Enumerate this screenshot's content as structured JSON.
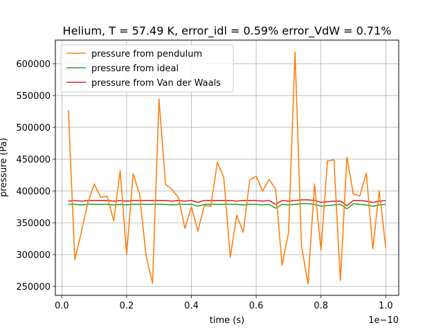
{
  "chart_data": {
    "type": "line",
    "title": "Helium, T = 57.49 K, error_idl = 0.59% error_VdW = 0.71%",
    "xlabel": "time (s)",
    "ylabel": "pressure (Pa)",
    "x_offset_label": "1e−10",
    "xlim": [
      -0.02,
      1.04
    ],
    "ylim": [
      236000,
      637000
    ],
    "xticks": [
      0.0,
      0.2,
      0.4,
      0.6,
      0.8,
      1.0
    ],
    "xtick_labels": [
      "0.0",
      "0.2",
      "0.4",
      "0.6",
      "0.8",
      "1.0"
    ],
    "yticks": [
      250000,
      300000,
      350000,
      400000,
      450000,
      500000,
      550000,
      600000
    ],
    "ytick_labels": [
      "250000",
      "300000",
      "350000",
      "400000",
      "450000",
      "500000",
      "550000",
      "600000"
    ],
    "grid": true,
    "legend_position": "top-left",
    "x": [
      0.02,
      0.04,
      0.06,
      0.08,
      0.1,
      0.12,
      0.14,
      0.16,
      0.18,
      0.2,
      0.22,
      0.24,
      0.26,
      0.28,
      0.3,
      0.32,
      0.34,
      0.36,
      0.38,
      0.4,
      0.42,
      0.44,
      0.46,
      0.48,
      0.5,
      0.52,
      0.54,
      0.56,
      0.58,
      0.6,
      0.62,
      0.64,
      0.66,
      0.68,
      0.7,
      0.72,
      0.74,
      0.76,
      0.78,
      0.8,
      0.82,
      0.84,
      0.86,
      0.88,
      0.9,
      0.92,
      0.94,
      0.96,
      0.98,
      1.0
    ],
    "series": [
      {
        "name": "pressure from pendulum",
        "color": "#ff7f0e",
        "values": [
          527000,
          292000,
          335000,
          381000,
          411000,
          390000,
          392000,
          353000,
          432000,
          300000,
          427000,
          395000,
          298000,
          255000,
          544000,
          411000,
          402000,
          390000,
          341000,
          375000,
          337000,
          377000,
          376000,
          445000,
          421000,
          296000,
          362000,
          335000,
          417000,
          423000,
          400000,
          418000,
          403000,
          283000,
          335000,
          618000,
          313000,
          254000,
          411000,
          307000,
          447000,
          449000,
          259000,
          453000,
          395000,
          392000,
          428000,
          309000,
          400000,
          311000
        ]
      },
      {
        "name": "pressure from ideal",
        "color": "#2ca02c",
        "values": [
          379000,
          379000,
          378000,
          379000,
          379000,
          379000,
          379000,
          378000,
          379000,
          378000,
          379000,
          379000,
          379000,
          379000,
          379000,
          379000,
          378000,
          379000,
          379000,
          379000,
          376000,
          379000,
          379000,
          379000,
          379000,
          379000,
          379000,
          378000,
          379000,
          379000,
          378000,
          379000,
          373000,
          379000,
          378000,
          379000,
          380000,
          380000,
          379000,
          376000,
          377000,
          378000,
          379000,
          372000,
          380000,
          379000,
          378000,
          376000,
          378000,
          379000
        ]
      },
      {
        "name": "pressure from Van der Waals",
        "color": "#d62728",
        "values": [
          384000,
          385000,
          384000,
          385000,
          385000,
          385000,
          385000,
          384000,
          385000,
          384000,
          385000,
          385000,
          385000,
          385000,
          385000,
          385000,
          384000,
          385000,
          384000,
          385000,
          382000,
          385000,
          385000,
          385000,
          385000,
          385000,
          384000,
          385000,
          385000,
          385000,
          384000,
          385000,
          379000,
          385000,
          384000,
          385000,
          386000,
          386000,
          385000,
          382000,
          383000,
          384000,
          384000,
          377000,
          385000,
          385000,
          384000,
          382000,
          384000,
          385000
        ]
      }
    ]
  }
}
